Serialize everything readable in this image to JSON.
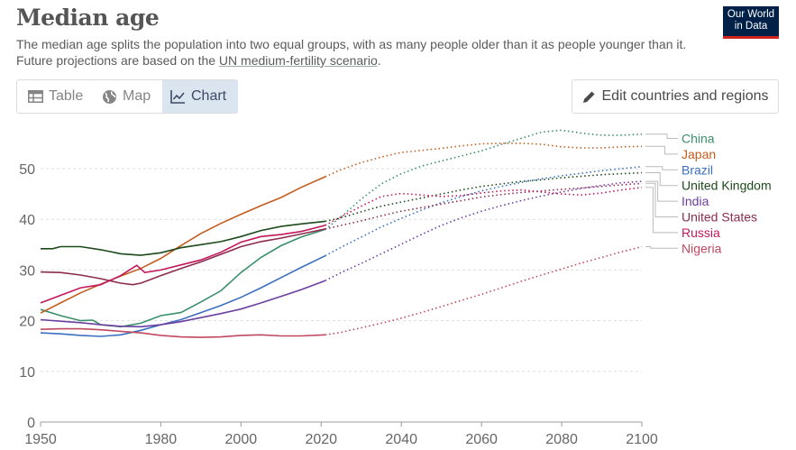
{
  "header": {
    "title": "Median age",
    "subtitle_text": "The median age splits the population into two equal groups, with as many people older than it as people younger than it. Future projections are based on the ",
    "subtitle_link": "UN medium-fertility scenario",
    "subtitle_end": ".",
    "logo_line1": "Our World",
    "logo_line2": "in Data"
  },
  "tabs": [
    {
      "label": "Table",
      "icon": "table-icon"
    },
    {
      "label": "Map",
      "icon": "globe-icon"
    },
    {
      "label": "Chart",
      "icon": "line-chart-icon",
      "selected": true
    }
  ],
  "edit_button": {
    "label": "Edit countries and regions",
    "icon": "pencil-icon"
  },
  "chart_data": {
    "type": "line",
    "title": "Median age",
    "xlim": [
      1950,
      2100
    ],
    "ylim": [
      0,
      58
    ],
    "yticks": [
      0,
      10,
      20,
      30,
      40,
      50
    ],
    "xticks": [
      1950,
      1980,
      2000,
      2020,
      2040,
      2060,
      2080,
      2100
    ],
    "grid": "horizontal dashed",
    "projection_start": 2021,
    "series": [
      {
        "name": "China",
        "color": "#3a8f6b",
        "points": [
          [
            1950,
            22.2
          ],
          [
            1955,
            21
          ],
          [
            1960,
            20
          ],
          [
            1963,
            20.1
          ],
          [
            1965,
            19.2
          ],
          [
            1970,
            18.8
          ],
          [
            1975,
            19.5
          ],
          [
            1980,
            21
          ],
          [
            1985,
            21.6
          ],
          [
            1990,
            23.7
          ],
          [
            1995,
            25.9
          ],
          [
            2000,
            29.5
          ],
          [
            2005,
            32.5
          ],
          [
            2010,
            34.8
          ],
          [
            2015,
            36.5
          ],
          [
            2021,
            38
          ],
          [
            2025,
            40.5
          ],
          [
            2030,
            44
          ],
          [
            2035,
            47
          ],
          [
            2040,
            49
          ],
          [
            2045,
            50.5
          ],
          [
            2050,
            51.5
          ],
          [
            2055,
            52.5
          ],
          [
            2060,
            53.5
          ],
          [
            2065,
            54.8
          ],
          [
            2070,
            56
          ],
          [
            2075,
            57.2
          ],
          [
            2080,
            57.6
          ],
          [
            2085,
            57
          ],
          [
            2090,
            56.6
          ],
          [
            2095,
            56.6
          ],
          [
            2100,
            56.8
          ]
        ]
      },
      {
        "name": "Japan",
        "color": "#c45d1f",
        "points": [
          [
            1950,
            21.5
          ],
          [
            1955,
            23.5
          ],
          [
            1960,
            25.5
          ],
          [
            1965,
            27.2
          ],
          [
            1970,
            28.8
          ],
          [
            1975,
            30.3
          ],
          [
            1980,
            32.3
          ],
          [
            1985,
            34.8
          ],
          [
            1990,
            37.2
          ],
          [
            1995,
            39.2
          ],
          [
            2000,
            41
          ],
          [
            2005,
            42.7
          ],
          [
            2010,
            44.3
          ],
          [
            2015,
            46.3
          ],
          [
            2021,
            48.4
          ],
          [
            2025,
            49.8
          ],
          [
            2030,
            51.2
          ],
          [
            2035,
            52.3
          ],
          [
            2040,
            53.2
          ],
          [
            2045,
            53.6
          ],
          [
            2050,
            54
          ],
          [
            2055,
            54.5
          ],
          [
            2060,
            54.9
          ],
          [
            2065,
            55
          ],
          [
            2070,
            55
          ],
          [
            2075,
            54.8
          ],
          [
            2080,
            54.3
          ],
          [
            2085,
            54.1
          ],
          [
            2090,
            54.1
          ],
          [
            2095,
            54.3
          ],
          [
            2100,
            54.4
          ]
        ]
      },
      {
        "name": "Brazil",
        "color": "#3b6fc0",
        "points": [
          [
            1950,
            17.6
          ],
          [
            1955,
            17.4
          ],
          [
            1960,
            17.1
          ],
          [
            1965,
            16.9
          ],
          [
            1970,
            17.2
          ],
          [
            1975,
            18.1
          ],
          [
            1980,
            19.2
          ],
          [
            1985,
            20.2
          ],
          [
            1990,
            21.6
          ],
          [
            1995,
            23
          ],
          [
            2000,
            24.6
          ],
          [
            2005,
            26.5
          ],
          [
            2010,
            28.5
          ],
          [
            2015,
            30.5
          ],
          [
            2021,
            32.8
          ],
          [
            2025,
            34.5
          ],
          [
            2030,
            36.5
          ],
          [
            2035,
            38.5
          ],
          [
            2040,
            40.2
          ],
          [
            2045,
            41.8
          ],
          [
            2050,
            43.3
          ],
          [
            2055,
            44.5
          ],
          [
            2060,
            45.6
          ],
          [
            2065,
            46.5
          ],
          [
            2070,
            47.3
          ],
          [
            2075,
            48
          ],
          [
            2080,
            48.6
          ],
          [
            2085,
            49.1
          ],
          [
            2090,
            49.6
          ],
          [
            2095,
            50
          ],
          [
            2100,
            50.4
          ]
        ]
      },
      {
        "name": "United Kingdom",
        "color": "#1c4a1c",
        "points": [
          [
            1950,
            34.2
          ],
          [
            1953,
            34.2
          ],
          [
            1955,
            34.6
          ],
          [
            1960,
            34.6
          ],
          [
            1965,
            34
          ],
          [
            1970,
            33.2
          ],
          [
            1975,
            32.9
          ],
          [
            1980,
            33.4
          ],
          [
            1985,
            34.4
          ],
          [
            1990,
            35
          ],
          [
            1995,
            35.6
          ],
          [
            2000,
            36.6
          ],
          [
            2005,
            37.8
          ],
          [
            2010,
            38.6
          ],
          [
            2015,
            39.1
          ],
          [
            2021,
            39.6
          ],
          [
            2025,
            40.3
          ],
          [
            2030,
            41.5
          ],
          [
            2035,
            42.6
          ],
          [
            2040,
            43.4
          ],
          [
            2045,
            44.2
          ],
          [
            2050,
            45
          ],
          [
            2055,
            45.8
          ],
          [
            2060,
            46.5
          ],
          [
            2065,
            47
          ],
          [
            2070,
            47.5
          ],
          [
            2075,
            47.8
          ],
          [
            2080,
            48.2
          ],
          [
            2085,
            48.5
          ],
          [
            2090,
            48.8
          ],
          [
            2095,
            49
          ],
          [
            2100,
            49.2
          ]
        ]
      },
      {
        "name": "India",
        "color": "#6b3fa0",
        "points": [
          [
            1950,
            20.2
          ],
          [
            1955,
            19.9
          ],
          [
            1960,
            19.6
          ],
          [
            1965,
            19.2
          ],
          [
            1970,
            18.9
          ],
          [
            1975,
            18.8
          ],
          [
            1980,
            19.2
          ],
          [
            1985,
            19.8
          ],
          [
            1990,
            20.6
          ],
          [
            1995,
            21.4
          ],
          [
            2000,
            22.3
          ],
          [
            2005,
            23.5
          ],
          [
            2010,
            24.8
          ],
          [
            2015,
            26.1
          ],
          [
            2021,
            27.9
          ],
          [
            2025,
            29.5
          ],
          [
            2030,
            31.3
          ],
          [
            2035,
            33.2
          ],
          [
            2040,
            35.1
          ],
          [
            2045,
            37
          ],
          [
            2050,
            38.8
          ],
          [
            2055,
            40.3
          ],
          [
            2060,
            41.6
          ],
          [
            2065,
            42.7
          ],
          [
            2070,
            43.7
          ],
          [
            2075,
            44.6
          ],
          [
            2080,
            45.4
          ],
          [
            2085,
            46.1
          ],
          [
            2090,
            46.7
          ],
          [
            2095,
            47.2
          ],
          [
            2100,
            47.5
          ]
        ]
      },
      {
        "name": "United States",
        "color": "#8b2c4f",
        "points": [
          [
            1950,
            29.6
          ],
          [
            1955,
            29.5
          ],
          [
            1960,
            29
          ],
          [
            1965,
            28.3
          ],
          [
            1970,
            27.4
          ],
          [
            1973,
            27.1
          ],
          [
            1975,
            27.4
          ],
          [
            1980,
            28.9
          ],
          [
            1985,
            30.3
          ],
          [
            1990,
            31.6
          ],
          [
            1995,
            33.1
          ],
          [
            2000,
            34.6
          ],
          [
            2005,
            35.6
          ],
          [
            2010,
            36.3
          ],
          [
            2015,
            37.1
          ],
          [
            2021,
            38.1
          ],
          [
            2025,
            38.8
          ],
          [
            2030,
            39.7
          ],
          [
            2035,
            40.7
          ],
          [
            2040,
            41.6
          ],
          [
            2045,
            42.3
          ],
          [
            2050,
            43
          ],
          [
            2055,
            43.7
          ],
          [
            2060,
            44.4
          ],
          [
            2065,
            44.9
          ],
          [
            2070,
            45.3
          ],
          [
            2075,
            45.6
          ],
          [
            2080,
            45.9
          ],
          [
            2085,
            46.2
          ],
          [
            2090,
            46.5
          ],
          [
            2095,
            46.8
          ],
          [
            2100,
            47.1
          ]
        ]
      },
      {
        "name": "Russia",
        "color": "#c2185b",
        "points": [
          [
            1950,
            23.5
          ],
          [
            1955,
            25
          ],
          [
            1960,
            26.5
          ],
          [
            1965,
            27.1
          ],
          [
            1970,
            28.9
          ],
          [
            1974,
            30.9
          ],
          [
            1976,
            29.5
          ],
          [
            1980,
            30
          ],
          [
            1985,
            31
          ],
          [
            1990,
            32
          ],
          [
            1995,
            33.5
          ],
          [
            2000,
            35.5
          ],
          [
            2005,
            36.6
          ],
          [
            2010,
            37
          ],
          [
            2015,
            37.6
          ],
          [
            2021,
            38.8
          ],
          [
            2025,
            40.5
          ],
          [
            2030,
            42.6
          ],
          [
            2035,
            44.5
          ],
          [
            2040,
            45.1
          ],
          [
            2045,
            44.8
          ],
          [
            2050,
            44.5
          ],
          [
            2055,
            44.7
          ],
          [
            2060,
            45.2
          ],
          [
            2065,
            45.6
          ],
          [
            2070,
            45.8
          ],
          [
            2075,
            45.4
          ],
          [
            2080,
            45
          ],
          [
            2085,
            44.8
          ],
          [
            2090,
            45.2
          ],
          [
            2095,
            45.8
          ],
          [
            2100,
            46.3
          ]
        ]
      },
      {
        "name": "Nigeria",
        "color": "#c0485e",
        "points": [
          [
            1950,
            18.3
          ],
          [
            1955,
            18.4
          ],
          [
            1960,
            18.4
          ],
          [
            1965,
            18.2
          ],
          [
            1970,
            17.9
          ],
          [
            1975,
            17.6
          ],
          [
            1980,
            17.1
          ],
          [
            1985,
            16.8
          ],
          [
            1990,
            16.7
          ],
          [
            1995,
            16.8
          ],
          [
            2000,
            17.1
          ],
          [
            2005,
            17.2
          ],
          [
            2010,
            17
          ],
          [
            2015,
            17
          ],
          [
            2021,
            17.2
          ],
          [
            2025,
            17.7
          ],
          [
            2030,
            18.6
          ],
          [
            2035,
            19.5
          ],
          [
            2040,
            20.5
          ],
          [
            2045,
            21.6
          ],
          [
            2050,
            22.8
          ],
          [
            2055,
            24
          ],
          [
            2060,
            25.2
          ],
          [
            2065,
            26.5
          ],
          [
            2070,
            27.8
          ],
          [
            2075,
            29
          ],
          [
            2080,
            30.2
          ],
          [
            2085,
            31.4
          ],
          [
            2090,
            32.5
          ],
          [
            2095,
            33.6
          ],
          [
            2100,
            34.6
          ]
        ]
      }
    ]
  }
}
